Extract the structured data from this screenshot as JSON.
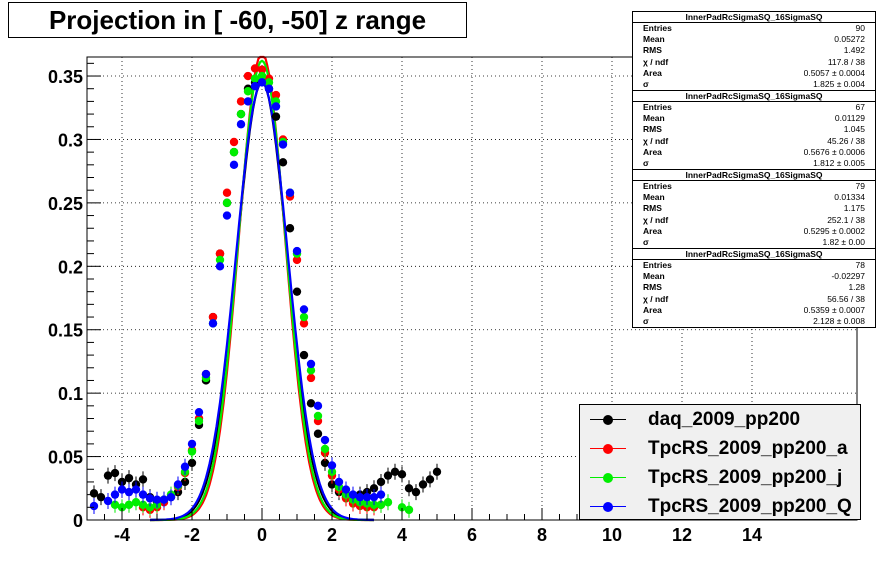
{
  "title": "Projection in [ -60, -50] z range",
  "colors": {
    "daq": "#000000",
    "a": "#ff0000",
    "j": "#00ee00",
    "Q": "#0000ff"
  },
  "stats_boxes": [
    {
      "name": "InnerPadRcSigmaSQ_16SigmaSQ",
      "entries": "90",
      "mean": "0.05272",
      "rms": "1.492",
      "chi2": "117.8 / 38",
      "area": "0.5057 ± 0.0004",
      "sigma": "1.825 ± 0.004"
    },
    {
      "name": "InnerPadRcSigmaSQ_16SigmaSQ",
      "entries": "67",
      "mean": "0.01129",
      "rms": "1.045",
      "chi2": "45.26 / 38",
      "area": "0.5676 ± 0.0006",
      "sigma": "1.812 ± 0.005"
    },
    {
      "name": "InnerPadRcSigmaSQ_16SigmaSQ",
      "entries": "79",
      "mean": "0.01334",
      "rms": "1.175",
      "chi2": "252.1 / 38",
      "area": "0.5295 ± 0.0002",
      "sigma": "1.82 ± 0.00"
    },
    {
      "name": "InnerPadRcSigmaSQ_16SigmaSQ",
      "entries": "78",
      "mean": "-0.02297",
      "rms": "1.28",
      "chi2": "56.56 / 38",
      "area": "0.5359 ± 0.0007",
      "sigma": "2.128 ± 0.008"
    }
  ],
  "stat_labels": {
    "entries": "Entries",
    "mean": "Mean",
    "rms": "RMS",
    "chi2": "χ  / ndf",
    "area": "Area",
    "sigma": "σ"
  },
  "legend": [
    {
      "label": "daq_2009_pp200",
      "color_key": "daq"
    },
    {
      "label": "TpcRS_2009_pp200_a",
      "color_key": "a"
    },
    {
      "label": "TpcRS_2009_pp200_j",
      "color_key": "j"
    },
    {
      "label": "TpcRS_2009_pp200_Q",
      "color_key": "Q"
    }
  ],
  "chart_data": {
    "type": "scatter",
    "title": "Projection in [ -60, -50] z range",
    "xlim": [
      -5,
      17
    ],
    "ylim": [
      0,
      0.365
    ],
    "x_ticks": [
      -4,
      -2,
      0,
      2,
      4,
      6,
      8,
      10,
      12,
      14
    ],
    "x_tick_labels": [
      "-4",
      "-2",
      "0",
      "2",
      "4",
      "6",
      "8",
      "10",
      "12",
      "14"
    ],
    "y_ticks": [
      0,
      0.05,
      0.1,
      0.15,
      0.2,
      0.25,
      0.3,
      0.35
    ],
    "y_tick_labels": [
      "0",
      "0.05",
      "0.1",
      "0.15",
      "0.2",
      "0.25",
      "0.3",
      "0.35"
    ],
    "grid": true,
    "series": [
      {
        "name": "daq_2009_pp200",
        "color_key": "daq",
        "x": [
          -4.8,
          -4.6,
          -4.4,
          -4.2,
          -4.0,
          -3.8,
          -3.6,
          -3.4,
          -3.2,
          -3.0,
          -2.8,
          -2.6,
          -2.4,
          -2.2,
          -2.0,
          -1.8,
          -1.6,
          -1.4,
          -1.2,
          -1.0,
          -0.8,
          -0.6,
          -0.4,
          -0.2,
          0.0,
          0.2,
          0.4,
          0.6,
          0.8,
          1.0,
          1.2,
          1.4,
          1.6,
          1.8,
          2.0,
          2.2,
          2.4,
          2.6,
          2.8,
          3.0,
          3.2,
          3.4,
          3.6,
          3.8,
          4.0,
          4.2,
          4.4,
          4.6,
          4.8,
          5.0
        ],
        "y": [
          0.021,
          0.018,
          0.035,
          0.037,
          0.03,
          0.033,
          0.028,
          0.032,
          0.018,
          0.014,
          0.016,
          0.018,
          0.022,
          0.03,
          0.045,
          0.075,
          0.11,
          0.16,
          0.21,
          0.25,
          0.29,
          0.32,
          0.34,
          0.345,
          0.346,
          0.34,
          0.318,
          0.282,
          0.23,
          0.18,
          0.13,
          0.092,
          0.068,
          0.045,
          0.028,
          0.022,
          0.018,
          0.016,
          0.02,
          0.022,
          0.025,
          0.03,
          0.035,
          0.038,
          0.036,
          0.025,
          0.022,
          0.028,
          0.032,
          0.038
        ]
      },
      {
        "name": "TpcRS_2009_pp200_a",
        "color_key": "a",
        "x": [
          -3.4,
          -3.2,
          -3.0,
          -2.8,
          -2.6,
          -2.4,
          -2.2,
          -2.0,
          -1.8,
          -1.6,
          -1.4,
          -1.2,
          -1.0,
          -0.8,
          -0.6,
          -0.4,
          -0.2,
          0.0,
          0.2,
          0.4,
          0.6,
          0.8,
          1.0,
          1.2,
          1.4,
          1.6,
          1.8,
          2.0,
          2.2,
          2.4,
          2.6,
          2.8,
          3.0,
          3.2,
          3.4
        ],
        "y": [
          0.01,
          0.008,
          0.01,
          0.014,
          0.019,
          0.026,
          0.037,
          0.055,
          0.08,
          0.115,
          0.16,
          0.21,
          0.258,
          0.298,
          0.33,
          0.35,
          0.356,
          0.355,
          0.348,
          0.335,
          0.3,
          0.255,
          0.205,
          0.155,
          0.112,
          0.078,
          0.053,
          0.035,
          0.024,
          0.017,
          0.013,
          0.011,
          0.01,
          0.01,
          0.012
        ]
      },
      {
        "name": "TpcRS_2009_pp200_j",
        "color_key": "j",
        "x": [
          -4.2,
          -4.0,
          -3.8,
          -3.6,
          -3.4,
          -3.2,
          -3.0,
          -2.8,
          -2.6,
          -2.4,
          -2.2,
          -2.0,
          -1.8,
          -1.6,
          -1.4,
          -1.2,
          -1.0,
          -0.8,
          -0.6,
          -0.4,
          -0.2,
          0.0,
          0.2,
          0.4,
          0.6,
          0.8,
          1.0,
          1.2,
          1.4,
          1.6,
          1.8,
          2.0,
          2.2,
          2.4,
          2.6,
          2.8,
          3.0,
          3.2,
          3.4,
          3.6,
          4.0,
          4.2
        ],
        "y": [
          0.012,
          0.01,
          0.012,
          0.014,
          0.012,
          0.01,
          0.012,
          0.016,
          0.02,
          0.027,
          0.038,
          0.054,
          0.078,
          0.112,
          0.155,
          0.205,
          0.25,
          0.29,
          0.32,
          0.338,
          0.348,
          0.35,
          0.345,
          0.33,
          0.298,
          0.258,
          0.21,
          0.16,
          0.118,
          0.082,
          0.056,
          0.038,
          0.026,
          0.02,
          0.016,
          0.014,
          0.013,
          0.012,
          0.012,
          0.014,
          0.01,
          0.008
        ]
      },
      {
        "name": "TpcRS_2009_pp200_Q",
        "color_key": "Q",
        "x": [
          -4.8,
          -4.4,
          -4.2,
          -4.0,
          -3.8,
          -3.6,
          -3.4,
          -3.2,
          -3.0,
          -2.8,
          -2.6,
          -2.4,
          -2.2,
          -2.0,
          -1.8,
          -1.6,
          -1.4,
          -1.2,
          -1.0,
          -0.8,
          -0.6,
          -0.4,
          -0.2,
          0.0,
          0.2,
          0.4,
          0.6,
          0.8,
          1.0,
          1.2,
          1.4,
          1.6,
          1.8,
          2.0,
          2.2,
          2.4,
          2.6,
          2.8,
          3.0,
          3.2,
          3.4
        ],
        "y": [
          0.011,
          0.015,
          0.02,
          0.024,
          0.022,
          0.024,
          0.02,
          0.017,
          0.016,
          0.016,
          0.018,
          0.028,
          0.042,
          0.06,
          0.085,
          0.115,
          0.155,
          0.2,
          0.24,
          0.28,
          0.312,
          0.33,
          0.342,
          0.345,
          0.34,
          0.326,
          0.296,
          0.258,
          0.212,
          0.166,
          0.123,
          0.09,
          0.063,
          0.043,
          0.03,
          0.024,
          0.02,
          0.018,
          0.018,
          0.018,
          0.02
        ]
      }
    ],
    "fit_curves": [
      {
        "color_key": "daq",
        "amplitude": 0.345,
        "mean": 0.0,
        "sigma": 0.72
      },
      {
        "color_key": "a",
        "amplitude": 0.368,
        "mean": 0.0,
        "sigma": 0.66
      },
      {
        "color_key": "j",
        "amplitude": 0.362,
        "mean": 0.0,
        "sigma": 0.68
      },
      {
        "color_key": "Q",
        "amplitude": 0.345,
        "mean": 0.0,
        "sigma": 0.74
      }
    ]
  }
}
